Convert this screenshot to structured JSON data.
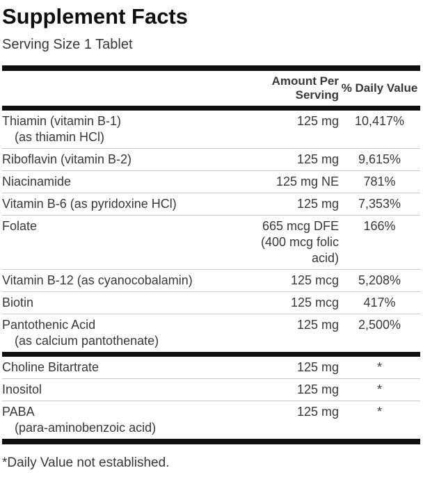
{
  "label": {
    "title": "Supplement Facts",
    "serving_size": "Serving Size 1 Tablet",
    "columns": {
      "amount": "Amount Per Serving",
      "daily_value": "% Daily Value"
    },
    "rows": [
      {
        "name": "Thiamin (vitamin B-1)",
        "sub": "(as thiamin HCl)",
        "amount": "125 mg",
        "daily_value": "10,417%"
      },
      {
        "name": "Riboflavin (vitamin B-2)",
        "amount": "125 mg",
        "daily_value": "9,615%"
      },
      {
        "name": "Niacinamide",
        "amount": "125 mg NE",
        "daily_value": "781%"
      },
      {
        "name": "Vitamin B-6 (as pyridoxine HCl)",
        "amount": "125 mg",
        "daily_value": "7,353%"
      },
      {
        "name": "Folate",
        "amount": "665 mcg DFE (400 mcg folic acid)",
        "daily_value": "166%"
      },
      {
        "name": "Vitamin B-12 (as cyanocobalamin)",
        "amount": "125 mcg",
        "daily_value": "5,208%"
      },
      {
        "name": "Biotin",
        "amount": "125 mcg",
        "daily_value": "417%"
      },
      {
        "name": "Pantothenic Acid",
        "sub": "(as calcium pantothenate)",
        "amount": "125 mg",
        "daily_value": "2,500%"
      },
      {
        "name": "Choline Bitartrate",
        "amount": "125 mg",
        "daily_value": "*"
      },
      {
        "name": "Inositol",
        "amount": "125 mg",
        "daily_value": "*"
      },
      {
        "name": "PABA",
        "sub": "(para-aminobenzoic acid)",
        "amount": "125 mg",
        "daily_value": "*"
      }
    ],
    "footnote": "*Daily Value not established.",
    "colors": {
      "background": "#ffffff",
      "title": "#0f0f0f",
      "text": "#383838",
      "bar": "#0f0f0f",
      "divider": "#c9c9c9"
    }
  }
}
